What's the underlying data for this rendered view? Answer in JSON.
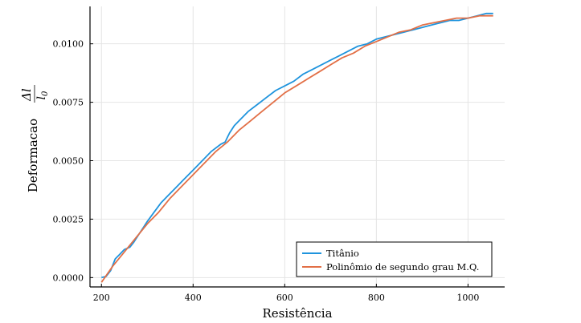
{
  "chart_data": {
    "type": "line",
    "xlabel": "Resistência",
    "ylabel_text": "Deformacao",
    "ylabel_fraction": {
      "numerator": "Δl",
      "denominator": "l",
      "denominator_subscript": "0"
    },
    "xlim": [
      175,
      1080
    ],
    "ylim": [
      -0.0004,
      0.0116
    ],
    "x_ticks": [
      200,
      400,
      600,
      800,
      1000
    ],
    "x_tick_labels": [
      "200",
      "400",
      "600",
      "800",
      "1000"
    ],
    "y_ticks": [
      0.0,
      0.0025,
      0.005,
      0.0075,
      0.01
    ],
    "y_tick_labels": [
      "0.0000",
      "0.0025",
      "0.0050",
      "0.0075",
      "0.0100"
    ],
    "grid": true,
    "legend_position": "bottom-right",
    "series": [
      {
        "name": "Titânio",
        "color": "#1f94dd",
        "x": [
          200,
          210,
          220,
          230,
          240,
          250,
          262,
          270,
          280,
          290,
          300,
          315,
          330,
          345,
          360,
          380,
          400,
          420,
          440,
          460,
          470,
          475,
          480,
          490,
          500,
          520,
          540,
          560,
          580,
          600,
          620,
          640,
          660,
          680,
          700,
          720,
          740,
          760,
          780,
          800,
          820,
          840,
          860,
          880,
          900,
          920,
          940,
          960,
          980,
          1000,
          1020,
          1040,
          1055
        ],
        "y": [
          0.0,
          5e-05,
          0.0003,
          0.0008,
          0.001,
          0.0012,
          0.0013,
          0.0015,
          0.0018,
          0.0021,
          0.0024,
          0.0028,
          0.0032,
          0.0035,
          0.0038,
          0.0042,
          0.0046,
          0.005,
          0.0054,
          0.0057,
          0.0058,
          0.006,
          0.0062,
          0.0065,
          0.0067,
          0.0071,
          0.0074,
          0.0077,
          0.008,
          0.0082,
          0.0084,
          0.0087,
          0.0089,
          0.0091,
          0.0093,
          0.0095,
          0.0097,
          0.0099,
          0.01,
          0.0102,
          0.0103,
          0.0104,
          0.0105,
          0.0106,
          0.0107,
          0.0108,
          0.0109,
          0.011,
          0.011,
          0.0111,
          0.0112,
          0.0113,
          0.0113
        ]
      },
      {
        "name": "Polinômio de segundo grau M.Q.",
        "color": "#e26f46",
        "x": [
          200,
          225,
          250,
          275,
          300,
          325,
          350,
          375,
          400,
          425,
          450,
          475,
          500,
          525,
          550,
          575,
          600,
          625,
          650,
          675,
          700,
          725,
          750,
          775,
          800,
          825,
          850,
          875,
          900,
          925,
          950,
          975,
          1000,
          1025,
          1055
        ],
        "y": [
          -0.0002,
          0.0005,
          0.0011,
          0.0017,
          0.0023,
          0.0028,
          0.0034,
          0.0039,
          0.0044,
          0.0049,
          0.0054,
          0.0058,
          0.0063,
          0.0067,
          0.0071,
          0.0075,
          0.0079,
          0.0082,
          0.0085,
          0.0088,
          0.0091,
          0.0094,
          0.0096,
          0.0099,
          0.0101,
          0.0103,
          0.0105,
          0.0106,
          0.0108,
          0.0109,
          0.011,
          0.0111,
          0.0111,
          0.0112,
          0.0112
        ]
      }
    ]
  }
}
